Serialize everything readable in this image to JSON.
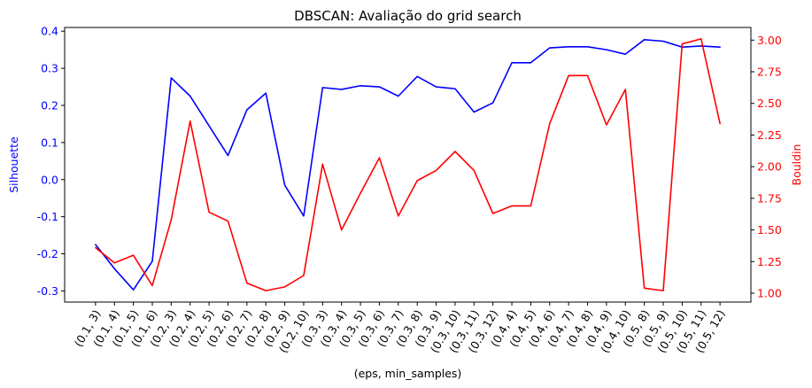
{
  "chart_data": {
    "type": "line",
    "title": "DBSCAN: Avaliação do grid search",
    "xlabel": "(eps, min_samples)",
    "categories": [
      "(0.1, 3)",
      "(0.1, 4)",
      "(0.1, 5)",
      "(0.1, 6)",
      "(0.2, 3)",
      "(0.2, 4)",
      "(0.2, 5)",
      "(0.2, 6)",
      "(0.2, 7)",
      "(0.2, 8)",
      "(0.2, 9)",
      "(0.2, 10)",
      "(0.3, 3)",
      "(0.3, 4)",
      "(0.3, 5)",
      "(0.3, 6)",
      "(0.3, 7)",
      "(0.3, 8)",
      "(0.3, 9)",
      "(0.3, 10)",
      "(0.3, 11)",
      "(0.3, 12)",
      "(0.4, 4)",
      "(0.4, 5)",
      "(0.4, 6)",
      "(0.4, 7)",
      "(0.4, 8)",
      "(0.4, 9)",
      "(0.4, 10)",
      "(0.5, 8)",
      "(0.5, 9)",
      "(0.5, 10)",
      "(0.5, 11)",
      "(0.5, 12)"
    ],
    "series": [
      {
        "name": "Silhouette",
        "axis": "left",
        "color": "#0000ff",
        "ylabel": "Silhouette",
        "ylim": [
          -0.33,
          0.41
        ],
        "ticks": [
          "-0.3",
          "-0.2",
          "-0.1",
          "0.0",
          "0.1",
          "0.2",
          "0.3",
          "0.4"
        ],
        "values": [
          -0.175,
          -0.24,
          -0.297,
          -0.22,
          0.274,
          0.225,
          0.145,
          0.065,
          0.188,
          0.233,
          -0.015,
          -0.098,
          0.248,
          0.243,
          0.253,
          0.25,
          0.225,
          0.278,
          0.25,
          0.245,
          0.182,
          0.207,
          0.315,
          0.315,
          0.355,
          0.358,
          0.358,
          0.35,
          0.338,
          0.377,
          0.373,
          0.357,
          0.36,
          0.357
        ]
      },
      {
        "name": "Bouldin",
        "axis": "right",
        "color": "#ff0000",
        "ylabel": "Bouldin",
        "ylim": [
          0.93,
          3.1
        ],
        "ticks": [
          "1.00",
          "1.25",
          "1.50",
          "1.75",
          "2.00",
          "2.25",
          "2.50",
          "2.75",
          "3.00"
        ],
        "values": [
          1.36,
          1.24,
          1.3,
          1.06,
          1.58,
          2.36,
          1.64,
          1.57,
          1.08,
          1.02,
          1.05,
          1.14,
          2.02,
          1.5,
          1.79,
          2.07,
          1.61,
          1.89,
          1.97,
          2.12,
          1.97,
          1.63,
          1.69,
          1.69,
          2.34,
          2.72,
          2.72,
          2.33,
          2.61,
          1.04,
          1.02,
          2.97,
          3.01,
          2.34
        ]
      }
    ]
  }
}
